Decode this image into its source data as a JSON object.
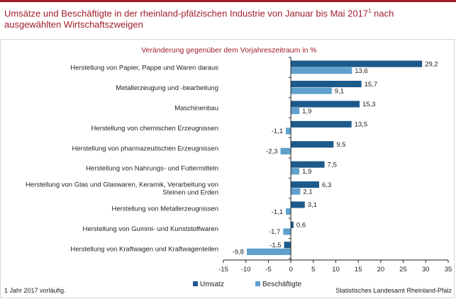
{
  "title": {
    "text": "Umsätze und Beschäftigte in der rheinland-pfälzischen Industrie von Januar bis Mai 2017",
    "footnote_mark": "1",
    "text_after": " nach ausgewählten Wirtschaftszweigen"
  },
  "footnote": "1 Jahr 2017 vorläufig.",
  "source": "Statistisches Landesamt Rheinland-Pfalz",
  "colors": {
    "accent": "#a11d2b",
    "umsatz": "#1d5a8c",
    "beschaeftigte": "#5fa0cc"
  },
  "chart_data": {
    "type": "bar",
    "orientation": "horizontal",
    "title": "Veränderung gegenüber dem Vorjahreszeitraum in %",
    "categories": [
      [
        "Herstellung von Papier, Pappe und Waren daraus"
      ],
      [
        "Metallerzeugung und -bearbeitung"
      ],
      [
        "Maschinenbau"
      ],
      [
        "Herstellung von chemischen Erzeugnissen"
      ],
      [
        "Herstellung von pharmazeutischen Erzeugnissen"
      ],
      [
        "Herstellung von Nahrungs- und Futtermitteln"
      ],
      [
        "Herstellung von Glas und Glaswaren, Keramik, Verarbeitung von",
        "Steinen und Erden"
      ],
      [
        "Herstellung von Metallerzeugnissen"
      ],
      [
        "Herstellung von Gummi- und Kunststoffwaren"
      ],
      [
        "Herstellung von Kraftwagen und Kraftwagenteilen"
      ]
    ],
    "series": [
      {
        "name": "Umsatz",
        "values": [
          29.2,
          15.7,
          15.3,
          13.5,
          9.5,
          7.5,
          6.3,
          3.1,
          0.6,
          -1.5
        ]
      },
      {
        "name": "Beschäftigte",
        "values": [
          13.6,
          9.1,
          1.9,
          -1.1,
          -2.3,
          1.9,
          2.1,
          -1.1,
          -1.7,
          -9.8
        ]
      }
    ],
    "xlim": [
      -15,
      35
    ],
    "xticks": [
      -15,
      -10,
      -5,
      0,
      5,
      10,
      15,
      20,
      25,
      30,
      35
    ],
    "grid": false,
    "legend_position": "bottom"
  }
}
